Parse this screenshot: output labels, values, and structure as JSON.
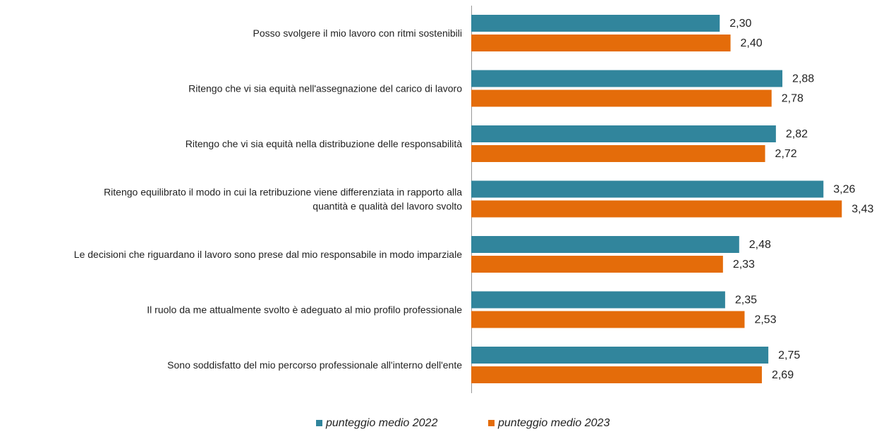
{
  "chart_data": {
    "type": "hbar",
    "categories": [
      "Posso svolgere il mio lavoro con ritmi sostenibili",
      "Ritengo che vi sia equità nell'assegnazione del carico di lavoro",
      "Ritengo che vi sia equità nella distribuzione delle responsabilità",
      "Ritengo equilibrato il modo in cui la retribuzione viene differenziata in rapporto alla\nquantità e qualità del lavoro svolto",
      "Le decisioni che riguardano il lavoro sono prese dal mio responsabile in modo imparziale",
      "Il ruolo da me attualmente svolto è adeguato al mio profilo professionale",
      "Sono soddisfatto del mio percorso professionale all'interno dell'ente"
    ],
    "series": [
      {
        "name": "punteggio medio 2022",
        "color": "#31859c",
        "values": [
          2.3,
          2.88,
          2.82,
          3.26,
          2.48,
          2.35,
          2.75
        ],
        "value_labels": [
          "2,30",
          "2,88",
          "2,82",
          "3,26",
          "2,48",
          "2,35",
          "2,75"
        ]
      },
      {
        "name": "punteggio medio 2023",
        "color": "#e46c0a",
        "values": [
          2.4,
          2.78,
          2.72,
          3.43,
          2.33,
          2.53,
          2.69
        ],
        "value_labels": [
          "2,40",
          "2,78",
          "2,72",
          "3,43",
          "2,33",
          "2,53",
          "2,69"
        ]
      }
    ],
    "xlim": [
      0,
      3.5
    ],
    "legend": "bottom"
  }
}
